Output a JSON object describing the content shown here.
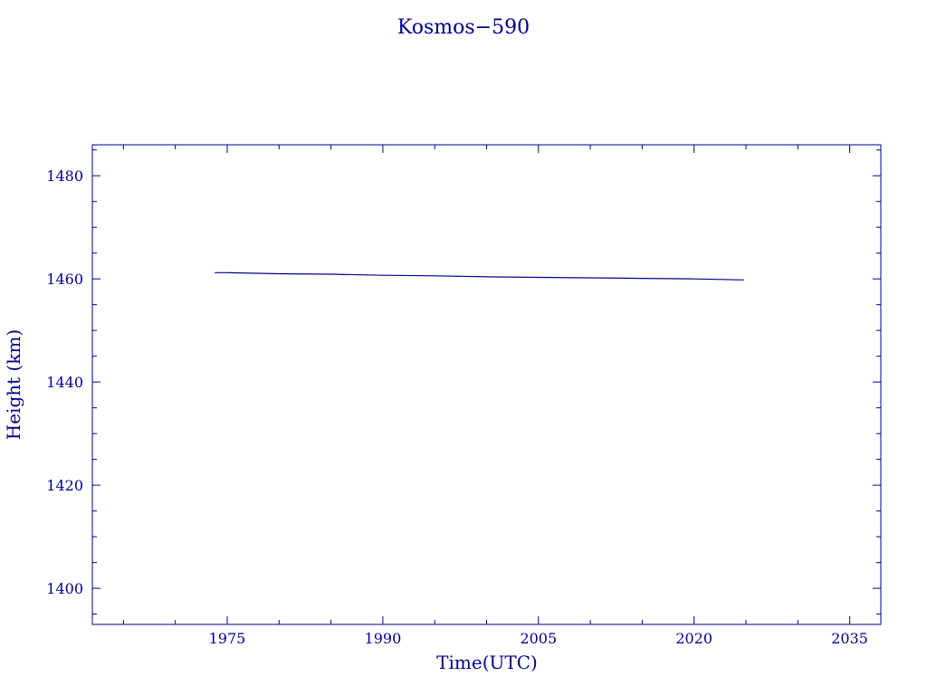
{
  "colors": {
    "ink": "#00008b",
    "background": "#ffffff"
  },
  "chart_data": {
    "type": "line",
    "title": "Kosmos−590",
    "xlabel": "Time(UTC)",
    "ylabel": "Height (km)",
    "xlim": [
      1962,
      2038
    ],
    "ylim": [
      1393,
      1486
    ],
    "x_ticks": [
      1975,
      1990,
      2005,
      2020,
      2035
    ],
    "x_tick_labels": [
      "1975",
      "1990",
      "2005",
      "2020",
      "2035"
    ],
    "y_ticks": [
      1400,
      1420,
      1440,
      1460,
      1480
    ],
    "y_tick_labels": [
      "1400",
      "1420",
      "1440",
      "1460",
      "1480"
    ],
    "x_minor_step": 5,
    "y_minor_step": 5,
    "grid": false,
    "series": [
      {
        "x": [
          1973.8,
          1975,
          1980,
          1985,
          1990,
          1995,
          2000,
          2005,
          2010,
          2015,
          2020,
          2024.8
        ],
        "y": [
          1461.2,
          1461.2,
          1461.0,
          1460.9,
          1460.7,
          1460.6,
          1460.4,
          1460.3,
          1460.2,
          1460.1,
          1460.0,
          1459.8
        ]
      }
    ]
  }
}
